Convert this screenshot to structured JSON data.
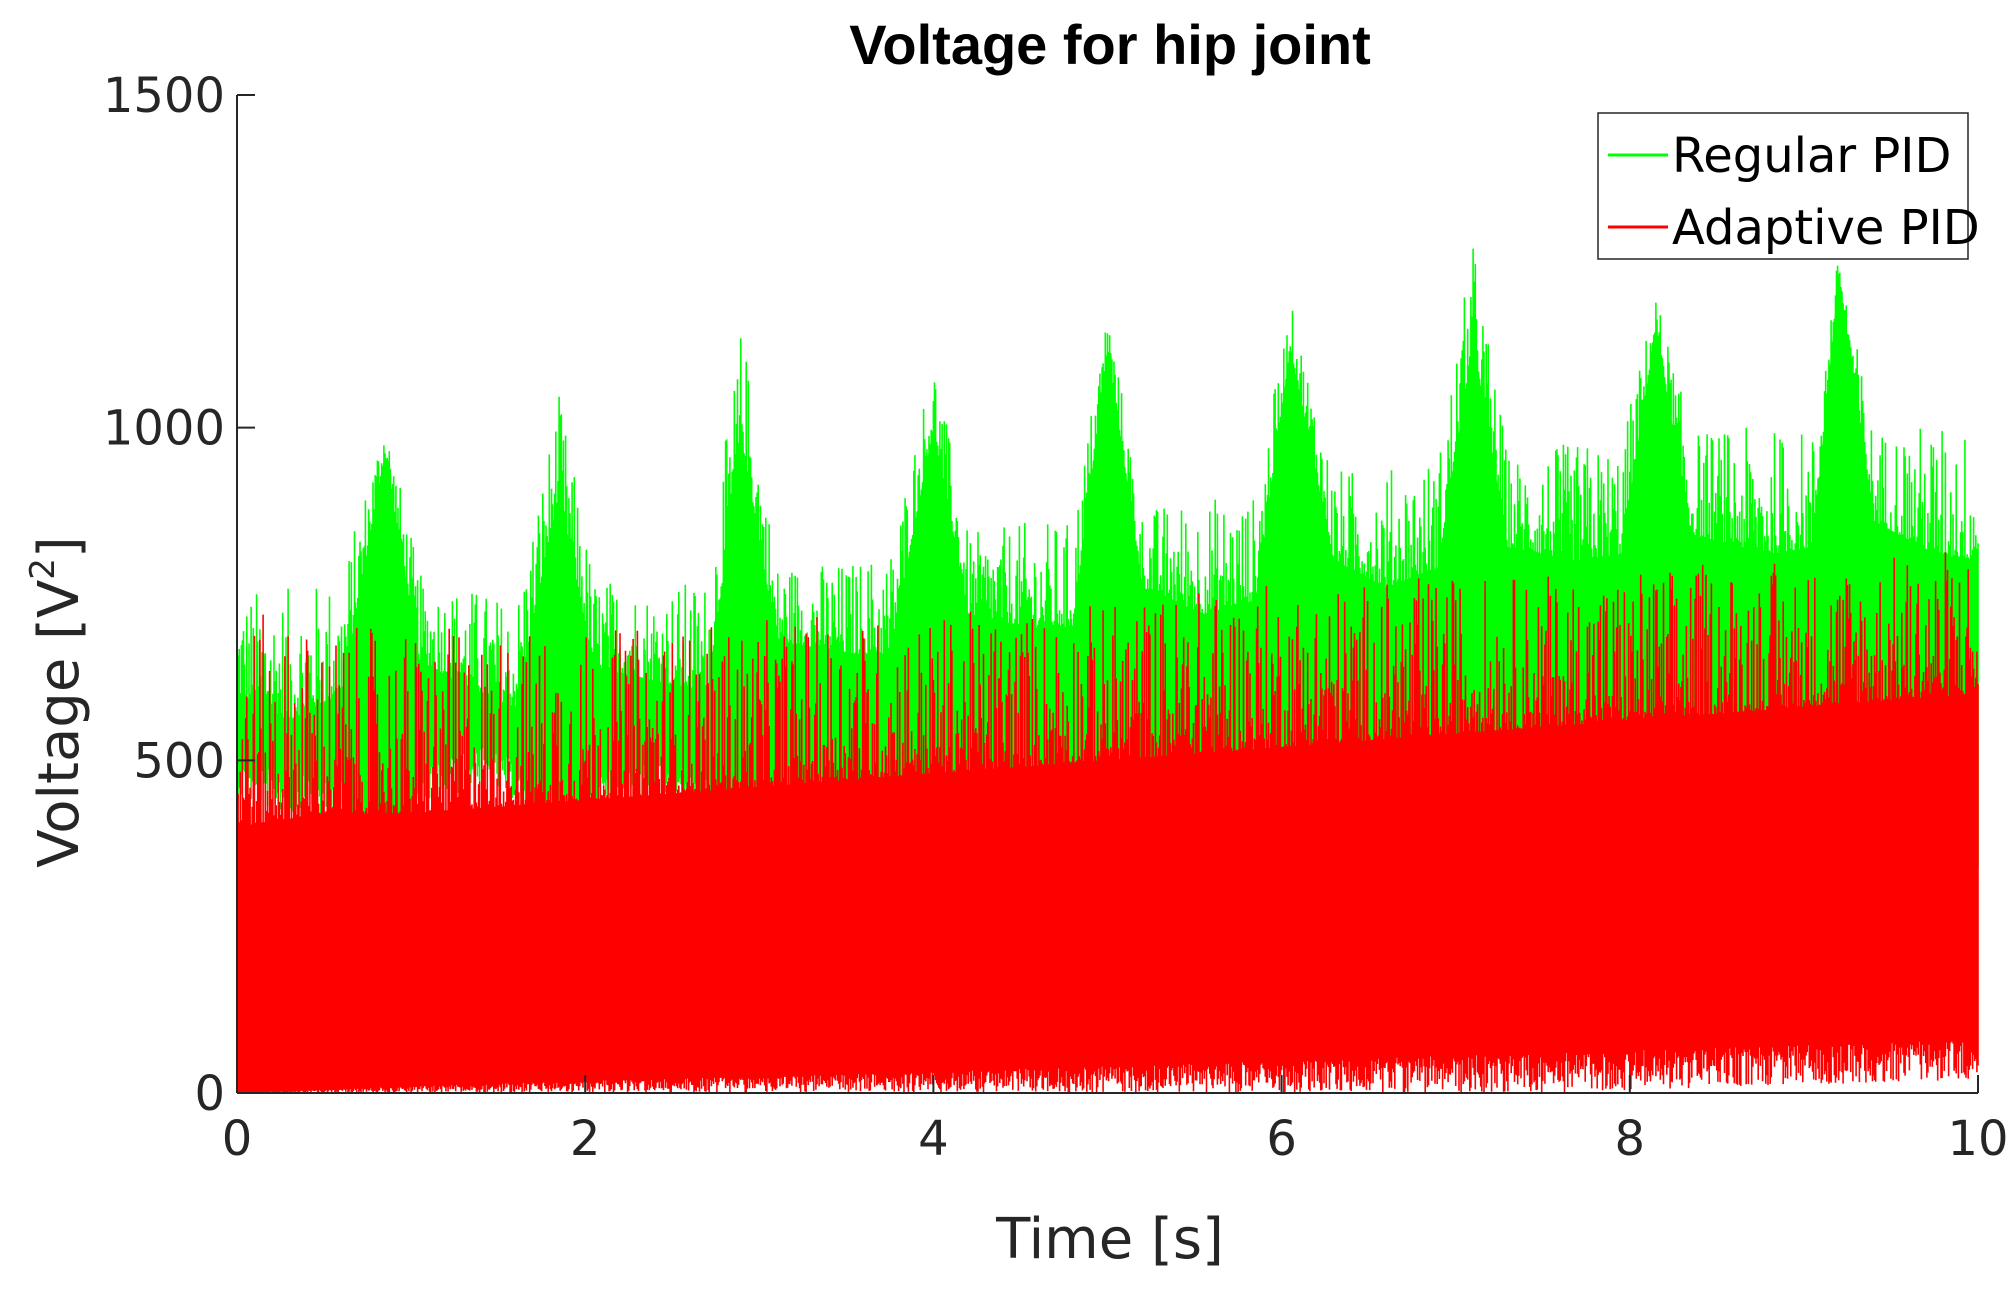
{
  "chart_data": {
    "type": "line",
    "title": "Voltage for hip joint",
    "xlabel": "Time [s]",
    "ylabel": {
      "base": "Voltage [V",
      "sup": "2",
      "close": "]"
    },
    "xlim": [
      0,
      10
    ],
    "ylim": [
      0,
      1500
    ],
    "xticks": [
      0,
      2,
      4,
      6,
      8,
      10
    ],
    "yticks": [
      0,
      500,
      1000,
      1500
    ],
    "grid": false,
    "legend_position": "top-right",
    "note": "Dense oscillating signals rendered as envelope bands (upper/lower bounds over time).",
    "series": [
      {
        "name": "Regular PID",
        "color": "#00ff00",
        "x": [
          0.0,
          0.3,
          0.6,
          0.85,
          1.05,
          1.4,
          1.6,
          1.85,
          2.05,
          2.4,
          2.7,
          2.9,
          3.1,
          3.5,
          3.75,
          4.0,
          4.2,
          4.55,
          4.8,
          5.0,
          5.2,
          5.55,
          5.85,
          6.05,
          6.3,
          6.6,
          6.9,
          7.1,
          7.3,
          7.7,
          7.95,
          8.15,
          8.35,
          8.8,
          9.05,
          9.2,
          9.4,
          9.75,
          10.0
        ],
        "upper": [
          600,
          560,
          600,
          960,
          650,
          600,
          580,
          900,
          640,
          620,
          600,
          980,
          680,
          660,
          660,
          1000,
          720,
          700,
          700,
          1120,
          760,
          720,
          740,
          1120,
          800,
          760,
          790,
          1130,
          820,
          800,
          810,
          1150,
          840,
          810,
          820,
          1230,
          860,
          810,
          800
        ],
        "lower": [
          500,
          480,
          470,
          300,
          490,
          520,
          500,
          340,
          480,
          500,
          480,
          340,
          450,
          440,
          420,
          350,
          430,
          410,
          400,
          350,
          420,
          390,
          380,
          340,
          400,
          380,
          360,
          330,
          370,
          360,
          350,
          330,
          360,
          360,
          340,
          330,
          360,
          350,
          340
        ],
        "spike_max": [
          760,
          760,
          780,
          1020,
          780,
          760,
          740,
          1050,
          780,
          760,
          780,
          1160,
          800,
          800,
          820,
          1110,
          840,
          860,
          860,
          1180,
          880,
          900,
          900,
          1190,
          940,
          940,
          960,
          1280,
          960,
          980,
          980,
          1200,
          1000,
          1000,
          1000,
          1260,
          1000,
          1010,
          1000
        ]
      },
      {
        "name": "Adaptive PID",
        "color": "#ff0000",
        "x": [
          0.0,
          0.5,
          1.0,
          1.5,
          2.0,
          2.5,
          3.0,
          3.5,
          4.0,
          4.5,
          5.0,
          5.5,
          6.0,
          6.5,
          7.0,
          7.5,
          8.0,
          8.5,
          9.0,
          9.5,
          10.0
        ],
        "upper": [
          400,
          420,
          420,
          430,
          440,
          450,
          460,
          470,
          480,
          490,
          500,
          510,
          520,
          530,
          540,
          550,
          560,
          570,
          580,
          590,
          600
        ],
        "lower": [
          0,
          5,
          10,
          15,
          18,
          22,
          25,
          28,
          32,
          36,
          40,
          44,
          48,
          52,
          56,
          60,
          64,
          68,
          72,
          76,
          80
        ],
        "spike_max": [
          730,
          700,
          700,
          700,
          700,
          700,
          710,
          720,
          720,
          730,
          740,
          760,
          770,
          770,
          780,
          780,
          790,
          800,
          800,
          810,
          830
        ]
      }
    ]
  }
}
